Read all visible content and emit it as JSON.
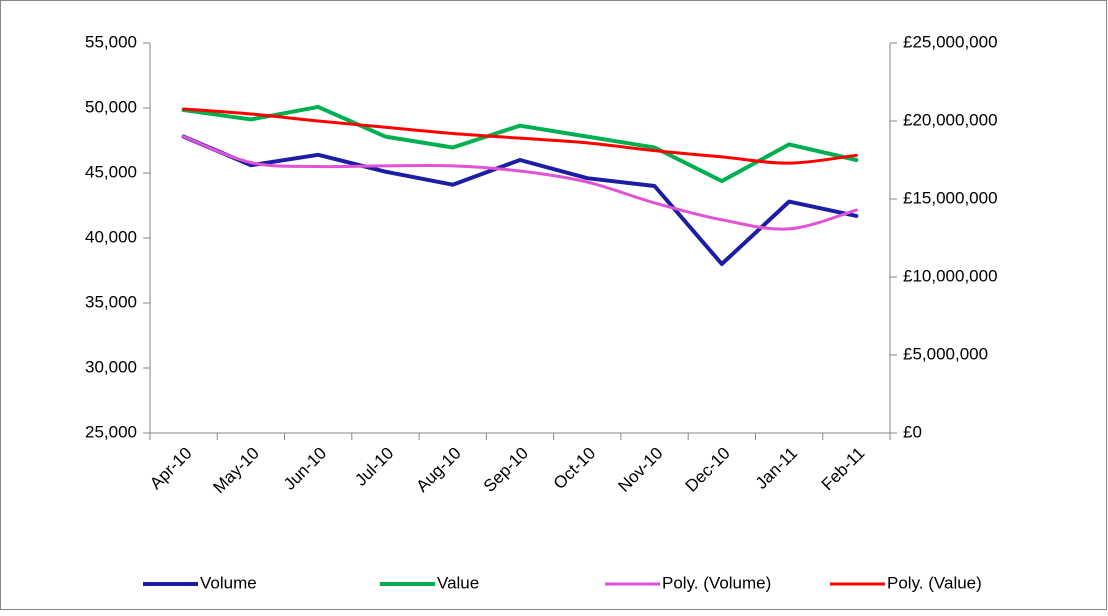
{
  "chart_data": {
    "type": "line",
    "categories": [
      "Apr-10",
      "May-10",
      "Jun-10",
      "Jul-10",
      "Aug-10",
      "Sep-10",
      "Oct-10",
      "Nov-10",
      "Dec-10",
      "Jan-11",
      "Feb-11"
    ],
    "series": [
      {
        "name": "Volume",
        "color": "#1c1ca4",
        "values": [
          47800,
          45600,
          46400,
          45100,
          44100,
          46000,
          44600,
          44000,
          38000,
          42800,
          41700
        ]
      },
      {
        "name": "Value",
        "color": "#00b050",
        "axis": "y2",
        "values": [
          20700000,
          20100000,
          20900000,
          19000000,
          18300000,
          19700000,
          19000000,
          18300000,
          16150000,
          18500000,
          17500000
        ]
      },
      {
        "name": "Poly. (Volume)",
        "color": "#e052d6",
        "smooth": true,
        "values": [
          47800,
          45800,
          45500,
          45550,
          45550,
          45150,
          44300,
          42700,
          41400,
          40700,
          42150
        ]
      },
      {
        "name": "Poly. (Value)",
        "color": "#ff0000",
        "smooth": true,
        "axis": "y2",
        "values": [
          20770000,
          20450000,
          20000000,
          19600000,
          19200000,
          18900000,
          18600000,
          18100000,
          17700000,
          17300000,
          17800000
        ]
      }
    ],
    "ylim": [
      25000,
      55000
    ],
    "yticks": [
      {
        "value": 25000,
        "label": "25,000"
      },
      {
        "value": 30000,
        "label": "30,000"
      },
      {
        "value": 35000,
        "label": "35,000"
      },
      {
        "value": 40000,
        "label": "40,000"
      },
      {
        "value": 45000,
        "label": "45,000"
      },
      {
        "value": 50000,
        "label": "50,000"
      },
      {
        "value": 55000,
        "label": "55,000"
      }
    ],
    "y2lim": [
      0,
      25000000
    ],
    "y2ticks": [
      {
        "value": 0,
        "label": "£0"
      },
      {
        "value": 5000000,
        "label": "£5,000,000"
      },
      {
        "value": 10000000,
        "label": "£10,000,000"
      },
      {
        "value": 15000000,
        "label": "£15,000,000"
      },
      {
        "value": 20000000,
        "label": "£20,000,000"
      },
      {
        "value": 25000000,
        "label": "£25,000,000"
      }
    ],
    "grid": false,
    "legend": "bottom"
  }
}
